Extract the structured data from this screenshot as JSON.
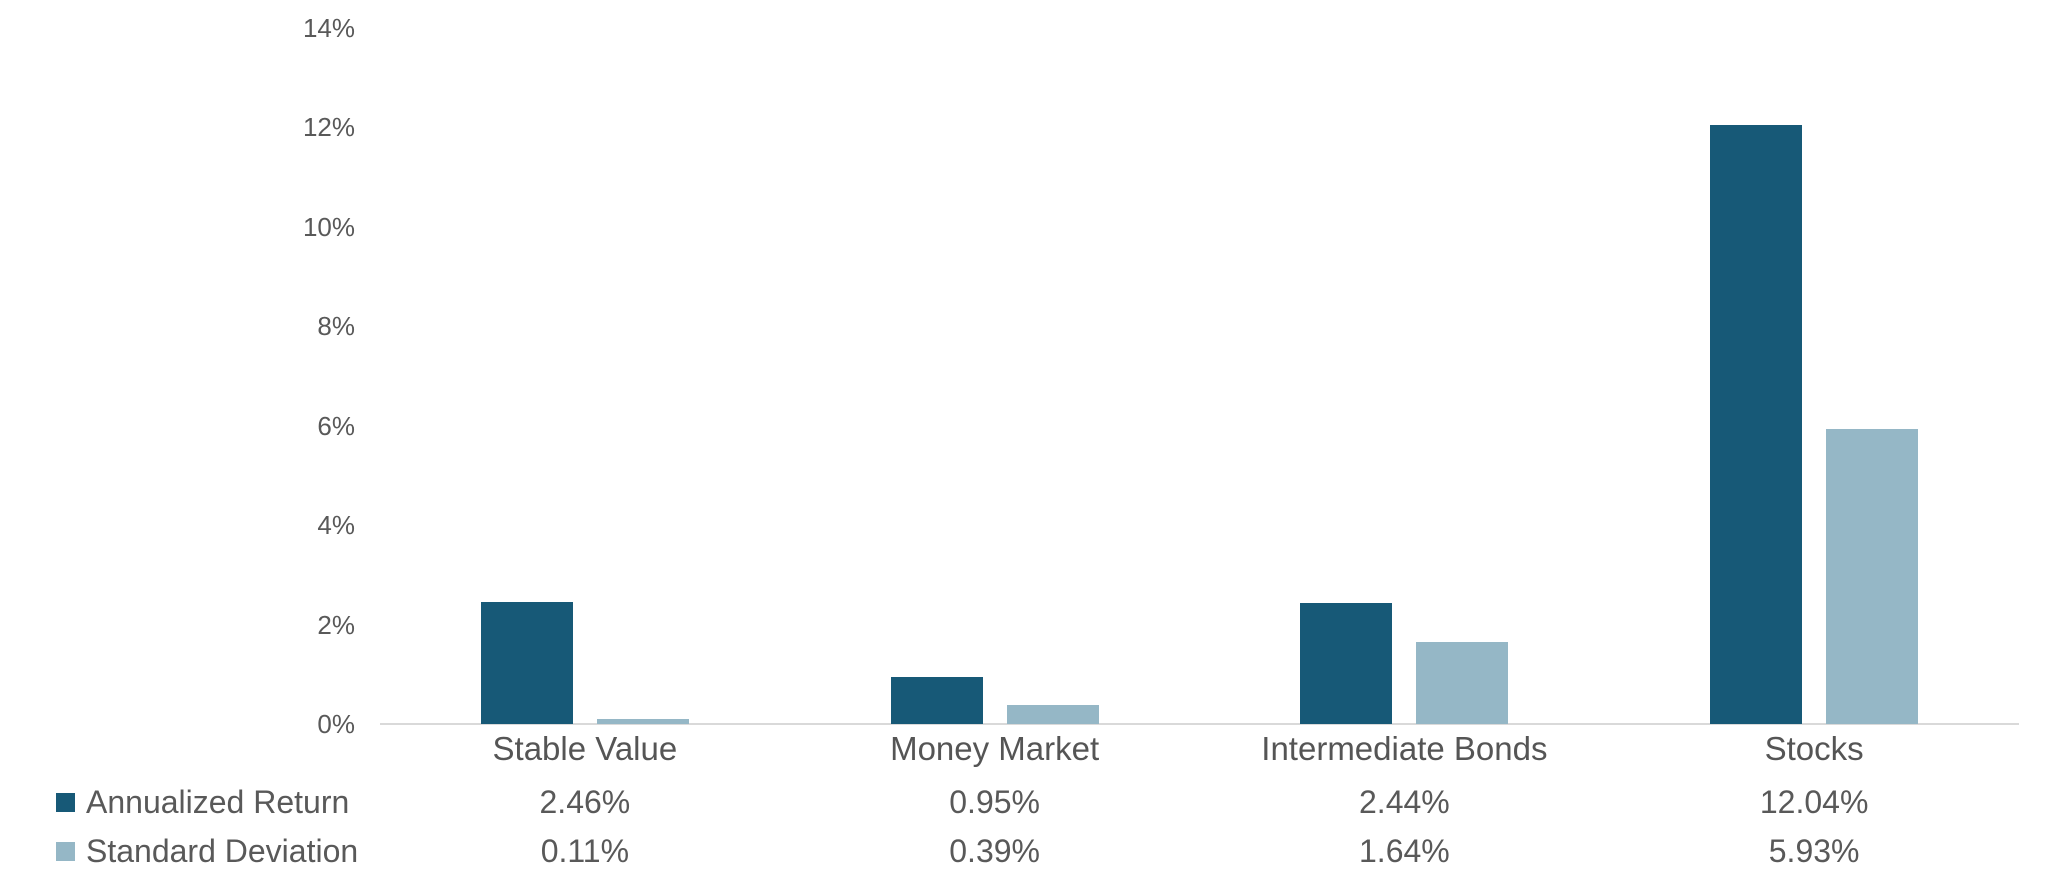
{
  "chart_data": {
    "type": "bar",
    "title": "",
    "xlabel": "",
    "ylabel": "",
    "categories": [
      "Stable Value",
      "Money Market",
      "Intermediate Bonds",
      "Stocks"
    ],
    "series": [
      {
        "name": "Annualized Return",
        "color": "#175977",
        "values": [
          2.46,
          0.95,
          2.44,
          12.04
        ],
        "value_labels": [
          "2.46%",
          "0.95%",
          "2.44%",
          "12.04%"
        ]
      },
      {
        "name": "Standard Deviation",
        "color": "#95B7C6",
        "values": [
          0.11,
          0.39,
          1.64,
          5.93
        ],
        "value_labels": [
          "0.11%",
          "0.39%",
          "1.64%",
          "5.93%"
        ]
      }
    ],
    "ylim": [
      0,
      14
    ],
    "y_ticks": [
      "0%",
      "2%",
      "4%",
      "6%",
      "8%",
      "10%",
      "12%",
      "14%"
    ],
    "grid": false,
    "legend_position": "bottom-left",
    "colors": {
      "axis_line": "#D9D9D9",
      "tick_text": "#595959",
      "label_text": "#555555"
    }
  }
}
